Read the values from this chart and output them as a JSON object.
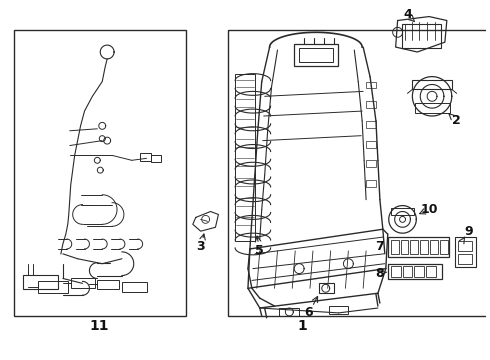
{
  "background_color": "#ffffff",
  "line_color": "#2a2a2a",
  "border_color": "#2a2a2a",
  "label_color": "#111111",
  "fig_width": 4.9,
  "fig_height": 3.6,
  "dpi": 100
}
